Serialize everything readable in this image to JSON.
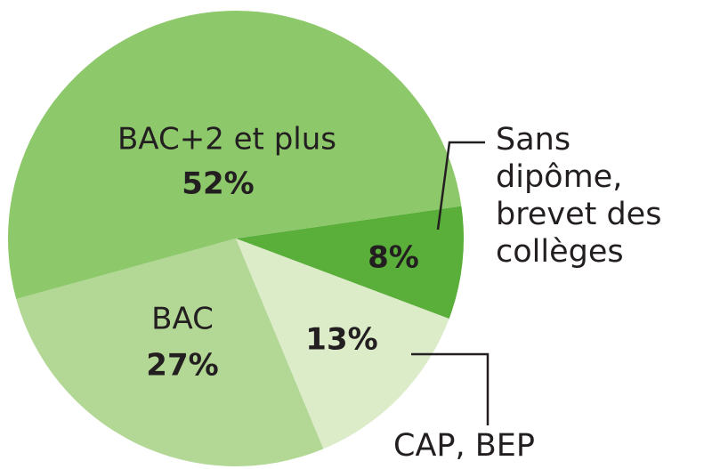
{
  "chart_data": {
    "type": "pie",
    "categories": [
      "Sans dipôme, brevet des collèges",
      "CAP, BEP",
      "BAC",
      "BAC+2 et plus"
    ],
    "values": [
      8,
      13,
      27,
      52
    ],
    "value_labels": [
      "8%",
      "13%",
      "27%",
      "52%"
    ],
    "colors": [
      "#5aae3a",
      "#dcebc8",
      "#b3d795",
      "#8dc86b"
    ]
  }
}
